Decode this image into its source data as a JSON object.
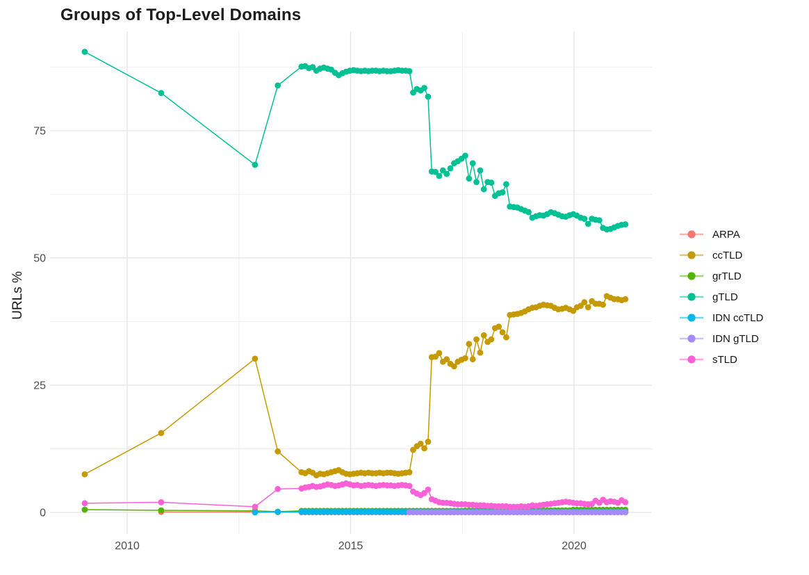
{
  "chart_data": {
    "type": "line",
    "title": "Groups of Top-Level Domains",
    "xlabel": "",
    "ylabel": "URLs %",
    "x_tick_labels": [
      "2010",
      "2015",
      "2020"
    ],
    "x_ticks": [
      2010,
      2015,
      2020
    ],
    "x_minor_ticks": [
      2012.5,
      2017.5
    ],
    "y_tick_labels": [
      "0",
      "25",
      "50",
      "75"
    ],
    "y_ticks": [
      0,
      25,
      50,
      75
    ],
    "y_minor_ticks": [
      12.5,
      37.5,
      62.5,
      87.5
    ],
    "xlim": [
      2008.2,
      2021.8
    ],
    "ylim": [
      -4,
      94
    ],
    "grid": true,
    "legend_position": "right",
    "marker": "point",
    "x_early": [
      2009.05,
      2010.76,
      2012.86,
      2013.37
    ],
    "x_dense_start": 2013.9,
    "x_dense_step": 0.0833,
    "series": [
      {
        "name": "ARPA",
        "color": "#F8766D",
        "early": [
          null,
          0.1,
          0.08,
          0.05
        ],
        "dense": [
          0.05,
          0.05,
          0.05,
          0.05,
          0.05,
          0.05,
          0.05,
          0.05,
          0.05,
          0.05,
          0.05,
          0.05,
          0.05,
          0.05,
          0.05,
          0.05,
          0.05,
          0.05,
          0.05,
          0.05,
          0.05,
          0.05,
          0.05,
          0.05,
          0.05,
          0.05,
          0.05,
          0.05,
          0.05,
          0.05,
          0.05,
          0.05,
          0.05,
          0.05,
          0.05,
          0.05,
          0.05,
          0.05,
          0.05,
          0.05,
          0.05,
          0.05,
          0.05,
          0.05,
          0.05,
          0.05,
          0.05,
          0.05,
          0.05,
          0.05,
          0.05,
          0.05,
          0.05,
          0.05,
          0.05,
          0.05,
          0.05,
          0.05,
          0.05,
          0.05,
          0.05,
          0.05,
          0.05,
          0.05,
          0.05,
          0.05,
          0.05,
          0.05,
          0.05,
          0.05,
          0.05,
          0.05,
          0.05,
          0.05,
          0.05,
          0.05,
          0.05,
          0.05,
          0.05,
          0.05,
          0.05,
          0.05,
          0.05,
          0.05,
          0.05,
          0.05,
          0.05,
          0.05
        ]
      },
      {
        "name": "ccTLD",
        "color": "#C49A00",
        "early": [
          7.5,
          15.6,
          30.2,
          12.0
        ],
        "dense": [
          7.9,
          7.7,
          8.1,
          7.8,
          7.3,
          7.6,
          7.5,
          7.7,
          7.9,
          8.1,
          8.3,
          7.9,
          7.6,
          7.5,
          7.6,
          7.7,
          7.8,
          7.7,
          7.8,
          7.7,
          7.7,
          7.8,
          7.7,
          7.8,
          7.8,
          7.7,
          7.6,
          7.7,
          7.8,
          7.9,
          12.3,
          13.0,
          13.5,
          12.6,
          13.9,
          30.5,
          30.6,
          31.3,
          29.6,
          30.1,
          29.2,
          28.7,
          29.6,
          30.0,
          30.3,
          33.1,
          30.1,
          34.0,
          31.4,
          34.8,
          33.5,
          34.0,
          36.2,
          36.5,
          35.4,
          34.4,
          38.8,
          38.9,
          39.0,
          39.2,
          39.5,
          39.9,
          40.2,
          40.3,
          40.6,
          40.8,
          40.7,
          40.6,
          40.2,
          39.9,
          40.0,
          40.2,
          39.9,
          39.6,
          40.3,
          40.6,
          41.3,
          40.3,
          41.5,
          41.0,
          41.0,
          40.8,
          42.5,
          42.2,
          41.9,
          41.9,
          41.7,
          41.9
        ]
      },
      {
        "name": "grTLD",
        "color": "#53B400",
        "early": [
          0.55,
          0.41,
          0.3,
          0.15
        ],
        "dense": [
          0.3,
          0.3,
          0.3,
          0.3,
          0.3,
          0.3,
          0.3,
          0.3,
          0.3,
          0.3,
          0.3,
          0.3,
          0.3,
          0.3,
          0.3,
          0.3,
          0.3,
          0.3,
          0.3,
          0.3,
          0.3,
          0.3,
          0.3,
          0.3,
          0.3,
          0.3,
          0.3,
          0.3,
          0.3,
          0.3,
          0.3,
          0.3,
          0.3,
          0.3,
          0.3,
          0.3,
          0.3,
          0.3,
          0.3,
          0.3,
          0.3,
          0.3,
          0.3,
          0.3,
          0.35,
          0.35,
          0.35,
          0.35,
          0.35,
          0.35,
          0.35,
          0.35,
          0.35,
          0.35,
          0.35,
          0.35,
          0.35,
          0.4,
          0.4,
          0.4,
          0.4,
          0.4,
          0.4,
          0.4,
          0.4,
          0.4,
          0.4,
          0.4,
          0.4,
          0.4,
          0.4,
          0.4,
          0.4,
          0.5,
          0.5,
          0.5,
          0.5,
          0.5,
          0.5,
          0.5,
          0.5,
          0.5,
          0.5,
          0.5,
          0.5,
          0.5,
          0.5,
          0.5
        ]
      },
      {
        "name": "gTLD",
        "color": "#00C094",
        "early": [
          90.5,
          82.4,
          68.3,
          83.9
        ],
        "dense": [
          87.6,
          87.7,
          87.3,
          87.5,
          86.8,
          87.2,
          87.4,
          87.2,
          87.0,
          86.4,
          85.9,
          86.3,
          86.6,
          86.8,
          86.9,
          86.8,
          86.7,
          86.8,
          86.7,
          86.8,
          86.8,
          86.7,
          86.8,
          86.7,
          86.7,
          86.8,
          86.9,
          86.8,
          86.8,
          86.7,
          82.5,
          83.2,
          82.9,
          83.4,
          81.7,
          67.0,
          66.9,
          66.1,
          67.2,
          66.5,
          67.6,
          68.6,
          69.0,
          69.5,
          70.1,
          65.6,
          68.6,
          64.9,
          67.2,
          63.5,
          64.9,
          64.8,
          62.2,
          62.7,
          62.9,
          64.5,
          60.1,
          60.0,
          59.9,
          59.6,
          59.3,
          59.0,
          57.9,
          58.2,
          58.4,
          58.3,
          58.6,
          59.0,
          58.8,
          58.5,
          58.2,
          58.1,
          58.4,
          58.6,
          58.3,
          57.9,
          57.7,
          56.7,
          57.7,
          57.5,
          57.4,
          55.9,
          55.6,
          55.7,
          56.0,
          56.3,
          56.5,
          56.6
        ]
      },
      {
        "name": "IDN ccTLD",
        "color": "#00B6EB",
        "early": [
          null,
          null,
          0.0,
          0.1
        ],
        "dense": [
          0.1,
          0.1,
          0.1,
          0.1,
          0.1,
          0.1,
          0.1,
          0.1,
          0.1,
          0.1,
          0.1,
          0.1,
          0.1,
          0.1,
          0.1,
          0.1,
          0.1,
          0.1,
          0.1,
          0.1,
          0.1,
          0.1,
          0.1,
          0.1,
          0.1,
          0.1,
          0.1,
          0.1,
          0.1,
          0.1,
          0.1,
          0.1,
          0.1,
          0.1,
          0.1,
          0.1,
          0.1,
          0.1,
          0.1,
          0.1,
          0.1,
          0.1,
          0.1,
          0.1,
          0.1,
          0.1,
          0.1,
          0.1,
          0.1,
          0.1,
          0.1,
          0.1,
          0.1,
          0.1,
          0.1,
          0.1,
          0.1,
          0.1,
          0.1,
          0.1,
          0.1,
          0.1,
          0.1,
          0.1,
          0.1,
          0.1,
          0.1,
          0.1,
          0.1,
          0.1,
          0.1,
          0.1,
          0.1,
          0.1,
          0.1,
          0.1,
          0.1,
          0.1,
          0.1,
          0.1,
          0.1,
          0.1,
          0.1,
          0.1,
          0.1,
          0.1,
          0.1,
          0.1
        ]
      },
      {
        "name": "IDN gTLD",
        "color": "#A58AFF",
        "early": [
          null,
          null,
          null,
          null
        ],
        "dense": [
          null,
          null,
          null,
          null,
          null,
          null,
          null,
          null,
          null,
          null,
          null,
          null,
          null,
          null,
          null,
          null,
          null,
          null,
          null,
          null,
          null,
          null,
          null,
          null,
          null,
          null,
          null,
          null,
          null,
          0.05,
          0.05,
          0.05,
          0.05,
          0.05,
          0.05,
          0.05,
          0.05,
          0.05,
          0.05,
          0.05,
          0.05,
          0.05,
          0.05,
          0.05,
          0.05,
          0.05,
          0.05,
          0.05,
          0.05,
          0.05,
          0.05,
          0.05,
          0.05,
          0.05,
          0.05,
          0.05,
          0.05,
          0.05,
          0.05,
          0.05,
          0.05,
          0.05,
          0.05,
          0.05,
          0.05,
          0.05,
          0.05,
          0.05,
          0.05,
          0.05,
          0.05,
          0.05,
          0.05,
          0.05,
          0.05,
          0.05,
          0.05,
          0.05,
          0.05,
          0.05,
          0.05,
          0.05,
          0.05,
          0.05,
          0.05,
          0.05,
          0.05,
          0.05
        ]
      },
      {
        "name": "sTLD",
        "color": "#FB61D7",
        "early": [
          1.8,
          2.0,
          1.1,
          4.6
        ],
        "dense": [
          4.7,
          4.9,
          5.0,
          5.2,
          5.0,
          5.1,
          5.3,
          5.5,
          5.4,
          5.2,
          5.3,
          5.5,
          5.7,
          5.5,
          5.3,
          5.4,
          5.2,
          5.3,
          5.4,
          5.3,
          5.2,
          5.3,
          5.4,
          5.3,
          5.3,
          5.2,
          5.3,
          5.4,
          5.3,
          5.2,
          4.1,
          3.7,
          3.4,
          3.8,
          4.5,
          2.6,
          2.3,
          2.0,
          1.9,
          1.9,
          1.8,
          1.7,
          1.6,
          1.6,
          1.6,
          1.5,
          1.5,
          1.4,
          1.4,
          1.4,
          1.3,
          1.3,
          1.2,
          1.2,
          1.2,
          1.2,
          1.1,
          1.1,
          1.1,
          1.2,
          1.1,
          1.2,
          1.4,
          1.3,
          1.4,
          1.5,
          1.6,
          1.7,
          1.8,
          1.9,
          2.0,
          2.1,
          2.0,
          1.9,
          1.8,
          1.8,
          1.7,
          1.6,
          1.7,
          2.3,
          1.9,
          2.5,
          2.0,
          2.2,
          2.1,
          1.9,
          2.4,
          2.0
        ]
      }
    ],
    "legend_labels": [
      "ARPA",
      "ccTLD",
      "grTLD",
      "gTLD",
      "IDN ccTLD",
      "IDN gTLD",
      "sTLD"
    ]
  },
  "style": {
    "grid_major_color": "#e3e3e3",
    "grid_minor_color": "#efefef",
    "tick_label_color": "#4d4d4d",
    "text_color": "#1c1c1c",
    "background": "#ffffff"
  }
}
